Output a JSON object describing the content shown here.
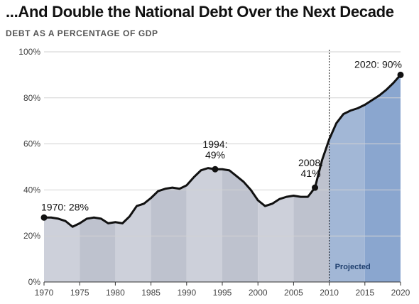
{
  "title": "...And Double the National Debt Over the Next Decade",
  "subtitle": "DEBT AS A PERCENTAGE OF GDP",
  "colors": {
    "historical_band_light": "#cdd0da",
    "historical_band_dark": "#bec2ce",
    "projected_band_light": "#a2b7d6",
    "projected_band_dark": "#8aa6cf",
    "line": "#111111"
  },
  "chart_data": {
    "type": "area",
    "title": "...And Double the National Debt Over the Next Decade",
    "subtitle": "DEBT AS A PERCENTAGE OF GDP",
    "xlim": [
      1970,
      2020
    ],
    "ylim": [
      0,
      100
    ],
    "x_ticks": [
      "1970",
      "1975",
      "1980",
      "1985",
      "1990",
      "1995",
      "2000",
      "2005",
      "2010",
      "2015",
      "2020"
    ],
    "y_ticks": [
      "0%",
      "20%",
      "40%",
      "60%",
      "80%",
      "100%"
    ],
    "x": [
      1970,
      1971,
      1972,
      1973,
      1974,
      1975,
      1976,
      1977,
      1978,
      1979,
      1980,
      1981,
      1982,
      1983,
      1984,
      1985,
      1986,
      1987,
      1988,
      1989,
      1990,
      1991,
      1992,
      1993,
      1994,
      1995,
      1996,
      1997,
      1998,
      1999,
      2000,
      2001,
      2002,
      2003,
      2004,
      2005,
      2006,
      2007,
      2008,
      2009,
      2010,
      2011,
      2012,
      2013,
      2014,
      2015,
      2016,
      2017,
      2018,
      2019,
      2020
    ],
    "series": [
      {
        "values": [
          28,
          28,
          27.5,
          26.5,
          24,
          25.5,
          27.5,
          28,
          27.5,
          25.5,
          26,
          25.5,
          28.5,
          33,
          34,
          36.5,
          39.5,
          40.5,
          41,
          40.5,
          42,
          45.5,
          48.5,
          49.5,
          49,
          49,
          48.5,
          46,
          43.5,
          40,
          35.5,
          33,
          34,
          36,
          37,
          37.5,
          37,
          37,
          41,
          53,
          62,
          69,
          73,
          74.5,
          75.5,
          77,
          79,
          81,
          83.5,
          86.5,
          90
        ]
      }
    ],
    "projected_start": 2010,
    "projected_label": "Projected",
    "annotations": [
      {
        "x": 1970,
        "y": 28,
        "label": "1970: 28%"
      },
      {
        "x": 1994,
        "y": 49,
        "label_lines": [
          "1994:",
          "49%"
        ]
      },
      {
        "x": 2008,
        "y": 41,
        "label_lines": [
          "2008:",
          "41%"
        ]
      },
      {
        "x": 2020,
        "y": 90,
        "label": "2020: 90%"
      }
    ]
  }
}
